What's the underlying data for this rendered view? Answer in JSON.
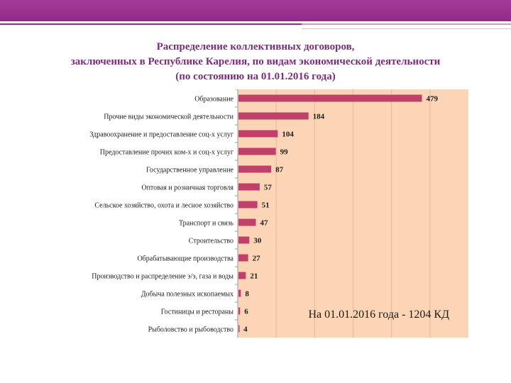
{
  "slide": {
    "title_lines": [
      "Распределение коллективных договоров,",
      "заключенных в Республике Карелия,  по видам экономической деятельности",
      "(по состоянию на 01.01.2016 года)"
    ],
    "accent_color": "#8e2c85",
    "title_color": "#7a2e7a"
  },
  "chart_data": {
    "type": "bar",
    "orientation": "horizontal",
    "categories": [
      "Образование",
      "Прочие виды экономической деятельности",
      "Здравоохранение и предоставление соц-х услуг",
      "Предоставление прочих ком-х и соц-х услуг",
      "Государственное управление",
      "Оптовая и розничная торговля",
      "Сельское хозяйство, охота и лесное хозяйство",
      "Транспорт и связь",
      "Строительство",
      "Обрабатывающие производства",
      "Производство и распределение э/э, газа и воды",
      "Добыча полезных ископаемых",
      "Гостиницы и рестораны",
      "Рыболовство и рыбоводство"
    ],
    "values": [
      479,
      184,
      104,
      99,
      87,
      57,
      51,
      47,
      30,
      27,
      21,
      8,
      6,
      4
    ],
    "xlim": [
      0,
      600
    ],
    "grid": true,
    "bar_color": "#c0406a",
    "plot_background": "#fbd5b5",
    "annotation": "На 01.01.2016 года - 1204 КД"
  }
}
